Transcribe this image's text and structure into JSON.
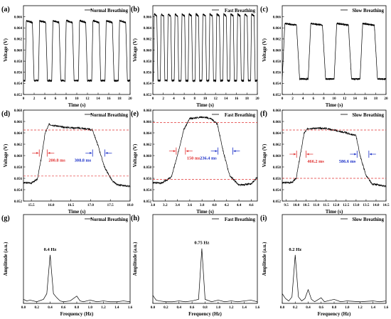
{
  "chart_data": [
    {
      "type": "line",
      "panel_label": "(a)",
      "legend": "Normal Breathing",
      "xlabel": "Time (s)",
      "ylabel": "Voltage (V)",
      "xlim": [
        0,
        20
      ],
      "ylim": [
        0.052,
        0.068
      ],
      "xticks": [
        "0",
        "2",
        "4",
        "6",
        "8",
        "10",
        "12",
        "14",
        "16",
        "18",
        "20"
      ],
      "yticks": [
        "0.052",
        "0.054",
        "0.056",
        "0.058",
        "0.060",
        "0.062",
        "0.064",
        "0.066"
      ],
      "ytick_values": [
        0.052,
        0.054,
        0.056,
        0.058,
        0.06,
        0.062,
        0.064,
        0.066
      ],
      "signal": {
        "period_s": 2.5,
        "low": 0.0545,
        "high": 0.0653,
        "duty_high": 0.55,
        "rise_s": 0.22,
        "fall_s": 0.32,
        "phase_s": 0.3
      }
    },
    {
      "type": "line",
      "panel_label": "(b)",
      "legend": "Fast Breathing",
      "xlabel": "Time (s)",
      "ylabel": "Voltage (V)",
      "xlim": [
        0,
        20
      ],
      "ylim": [
        0.052,
        0.068
      ],
      "xticks": [
        "0",
        "2",
        "4",
        "6",
        "8",
        "10",
        "12",
        "14",
        "16",
        "18",
        "20"
      ],
      "yticks": [
        "0.052",
        "0.054",
        "0.056",
        "0.058",
        "0.060",
        "0.062",
        "0.064",
        "0.066"
      ],
      "ytick_values": [
        0.052,
        0.054,
        0.056,
        0.058,
        0.06,
        0.062,
        0.064,
        0.066
      ],
      "signal": {
        "period_s": 1.33,
        "low": 0.0545,
        "high": 0.0665,
        "duty_high": 0.5,
        "rise_s": 0.16,
        "fall_s": 0.2,
        "phase_s": 0.1
      }
    },
    {
      "type": "line",
      "panel_label": "(c)",
      "legend": "Slow Breathing",
      "xlabel": "Time (s)",
      "ylabel": "Voltage (V)",
      "xlim": [
        0,
        20
      ],
      "ylim": [
        0.052,
        0.068
      ],
      "xticks": [
        "0",
        "2",
        "4",
        "6",
        "8",
        "10",
        "12",
        "14",
        "16",
        "18",
        "20"
      ],
      "yticks": [
        "0.052",
        "0.054",
        "0.056",
        "0.058",
        "0.060",
        "0.062",
        "0.064",
        "0.066"
      ],
      "ytick_values": [
        0.052,
        0.054,
        0.056,
        0.058,
        0.06,
        0.062,
        0.064,
        0.066
      ],
      "signal": {
        "period_s": 5.0,
        "low": 0.0548,
        "high": 0.0648,
        "duty_high": 0.55,
        "rise_s": 0.5,
        "fall_s": 0.6,
        "phase_s": 0.0
      }
    },
    {
      "type": "line",
      "panel_label": "(d)",
      "legend": "Normal Breathing",
      "xlabel": "Time (s)",
      "ylabel": "Voltage (V)",
      "xlim": [
        15.3,
        18.0
      ],
      "ylim": [
        0.052,
        0.068
      ],
      "xticks": [
        "15.5",
        "16.0",
        "16.5",
        "17.0",
        "17.5",
        "18.0"
      ],
      "xtick_values": [
        15.5,
        16.0,
        16.5,
        17.0,
        17.5,
        18.0
      ],
      "yticks": [
        "0.052",
        "0.054",
        "0.056",
        "0.058",
        "0.060",
        "0.062",
        "0.064",
        "0.066",
        "0.068"
      ],
      "ytick_values": [
        0.052,
        0.054,
        0.056,
        0.058,
        0.06,
        0.062,
        0.064,
        0.066,
        0.068
      ],
      "curve": [
        [
          15.3,
          0.0552
        ],
        [
          15.5,
          0.0552
        ],
        [
          15.65,
          0.0558
        ],
        [
          15.75,
          0.0595
        ],
        [
          15.85,
          0.064
        ],
        [
          15.95,
          0.0655
        ],
        [
          16.3,
          0.065
        ],
        [
          16.8,
          0.0648
        ],
        [
          17.05,
          0.0645
        ],
        [
          17.2,
          0.0615
        ],
        [
          17.35,
          0.058
        ],
        [
          17.55,
          0.0555
        ],
        [
          17.7,
          0.0548
        ],
        [
          18.0,
          0.0546
        ]
      ],
      "ref_levels": [
        0.0645,
        0.0564
      ],
      "rise": {
        "label": "200.8 ms",
        "t0": 15.7,
        "t1": 15.9
      },
      "fall": {
        "label": "308.8 ms",
        "t0": 17.05,
        "t1": 17.36
      }
    },
    {
      "type": "line",
      "panel_label": "(e)",
      "legend": "Fast Breathing",
      "xlabel": "Time (s)",
      "ylabel": "Voltage (V)",
      "xlim": [
        3.0,
        4.7
      ],
      "ylim": [
        0.052,
        0.068
      ],
      "xticks": [
        "3.0",
        "3.2",
        "3.4",
        "3.6",
        "3.8",
        "4.0",
        "4.2",
        "4.4",
        "4.6"
      ],
      "xtick_values": [
        3.0,
        3.2,
        3.4,
        3.6,
        3.8,
        4.0,
        4.2,
        4.4,
        4.6
      ],
      "yticks": [
        "0.052",
        "0.054",
        "0.056",
        "0.058",
        "0.060",
        "0.062",
        "0.064",
        "0.066",
        "0.068"
      ],
      "ytick_values": [
        0.052,
        0.054,
        0.056,
        0.058,
        0.06,
        0.062,
        0.064,
        0.066,
        0.068
      ],
      "curve": [
        [
          3.0,
          0.0552
        ],
        [
          3.15,
          0.0552
        ],
        [
          3.3,
          0.0562
        ],
        [
          3.4,
          0.06
        ],
        [
          3.5,
          0.0645
        ],
        [
          3.6,
          0.0665
        ],
        [
          3.8,
          0.0668
        ],
        [
          3.95,
          0.0665
        ],
        [
          4.05,
          0.0655
        ],
        [
          4.15,
          0.0605
        ],
        [
          4.25,
          0.0565
        ],
        [
          4.4,
          0.0548
        ],
        [
          4.6,
          0.055
        ],
        [
          4.7,
          0.0562
        ]
      ],
      "ref_levels": [
        0.0658,
        0.0558
      ],
      "rise": {
        "label": "150 ms",
        "t0": 3.38,
        "t1": 3.53
      },
      "fall": {
        "label": "236.4 ms",
        "t0": 4.06,
        "t1": 4.3
      }
    },
    {
      "type": "line",
      "panel_label": "(f)",
      "legend": "Slow Breathing",
      "xlabel": "Time (s)",
      "ylabel": "Voltage (V)",
      "xlim": [
        9.3,
        14.5
      ],
      "ylim": [
        0.052,
        0.068
      ],
      "xticks": [
        "9.5",
        "10.0",
        "10.5",
        "11.0",
        "11.5",
        "12.0",
        "12.5",
        "13.0",
        "13.5",
        "14.0",
        "14.5"
      ],
      "xtick_values": [
        9.5,
        10.0,
        10.5,
        11.0,
        11.5,
        12.0,
        12.5,
        13.0,
        13.5,
        14.0,
        14.5
      ],
      "yticks": [
        "0.052",
        "0.054",
        "0.056",
        "0.058",
        "0.060",
        "0.062",
        "0.064",
        "0.066",
        "0.068"
      ],
      "ytick_values": [
        0.052,
        0.054,
        0.056,
        0.058,
        0.06,
        0.062,
        0.064,
        0.066,
        0.068
      ],
      "curve": [
        [
          9.3,
          0.0552
        ],
        [
          9.8,
          0.0553
        ],
        [
          10.0,
          0.056
        ],
        [
          10.2,
          0.06
        ],
        [
          10.4,
          0.064
        ],
        [
          10.6,
          0.0648
        ],
        [
          11.5,
          0.0648
        ],
        [
          12.5,
          0.064
        ],
        [
          13.0,
          0.0635
        ],
        [
          13.2,
          0.06
        ],
        [
          13.5,
          0.0565
        ],
        [
          13.8,
          0.055
        ],
        [
          14.5,
          0.0546
        ]
      ],
      "ref_levels": [
        0.0645,
        0.056
      ],
      "rise": {
        "label": "466.2 ms",
        "t0": 10.02,
        "t1": 10.49
      },
      "fall": {
        "label": "586.6 ms",
        "t0": 13.05,
        "t1": 13.64
      }
    },
    {
      "type": "line",
      "panel_label": "(g)",
      "legend": "Normal Breathing",
      "xlabel": "Frequency (Hz)",
      "ylabel": "Amplitude (a.u.)",
      "xlim": [
        0,
        1.6
      ],
      "ylim": [
        0,
        1.1
      ],
      "xticks": [
        "0.0",
        "0.2",
        "0.4",
        "0.6",
        "0.8",
        "1.0",
        "1.2",
        "1.4",
        "1.6"
      ],
      "xtick_values": [
        0.0,
        0.2,
        0.4,
        0.6,
        0.8,
        1.0,
        1.2,
        1.4,
        1.6
      ],
      "peak_label": "0.4 Hz",
      "peak_at": 0.4,
      "spectrum": [
        [
          0,
          0.05
        ],
        [
          0.05,
          0.03
        ],
        [
          0.1,
          0.04
        ],
        [
          0.2,
          0.02
        ],
        [
          0.3,
          0.05
        ],
        [
          0.35,
          0.12
        ],
        [
          0.4,
          0.6
        ],
        [
          0.45,
          0.12
        ],
        [
          0.5,
          0.07
        ],
        [
          0.55,
          0.03
        ],
        [
          0.6,
          0.02
        ],
        [
          0.7,
          0.03
        ],
        [
          0.8,
          0.09
        ],
        [
          0.85,
          0.03
        ],
        [
          0.9,
          0.02
        ],
        [
          1.0,
          0.04
        ],
        [
          1.1,
          0.02
        ],
        [
          1.2,
          0.03
        ],
        [
          1.3,
          0.02
        ],
        [
          1.4,
          0.02
        ],
        [
          1.5,
          0.03
        ],
        [
          1.6,
          0.02
        ]
      ]
    },
    {
      "type": "line",
      "panel_label": "(h)",
      "legend": "Fast Breathing",
      "xlabel": "Frequency (Hz)",
      "ylabel": "Amplitude (a.u.)",
      "xlim": [
        0,
        1.6
      ],
      "ylim": [
        0,
        1.1
      ],
      "xticks": [
        "0.0",
        "0.2",
        "0.4",
        "0.6",
        "0.8",
        "1.0",
        "1.2",
        "1.4",
        "1.6"
      ],
      "xtick_values": [
        0.0,
        0.2,
        0.4,
        0.6,
        0.8,
        1.0,
        1.2,
        1.4,
        1.6
      ],
      "peak_label": "0.75 Hz",
      "peak_at": 0.75,
      "spectrum": [
        [
          0,
          0.1
        ],
        [
          0.05,
          0.04
        ],
        [
          0.1,
          0.03
        ],
        [
          0.2,
          0.02
        ],
        [
          0.3,
          0.02
        ],
        [
          0.4,
          0.03
        ],
        [
          0.5,
          0.02
        ],
        [
          0.6,
          0.03
        ],
        [
          0.7,
          0.05
        ],
        [
          0.75,
          0.68
        ],
        [
          0.8,
          0.05
        ],
        [
          0.9,
          0.02
        ],
        [
          1.0,
          0.04
        ],
        [
          1.1,
          0.02
        ],
        [
          1.2,
          0.03
        ],
        [
          1.3,
          0.02
        ],
        [
          1.4,
          0.03
        ],
        [
          1.5,
          0.04
        ],
        [
          1.6,
          0.02
        ]
      ]
    },
    {
      "type": "line",
      "panel_label": "(i)",
      "legend": "Slow Breathing",
      "xlabel": "Frequency (Hz)",
      "ylabel": "Amplitude (a.u.)",
      "xlim": [
        0,
        1.6
      ],
      "ylim": [
        0,
        1.1
      ],
      "xticks": [
        "0.0",
        "0.2",
        "0.4",
        "0.6",
        "0.8",
        "1.0",
        "1.2",
        "1.4",
        "1.6"
      ],
      "xtick_values": [
        0.0,
        0.2,
        0.4,
        0.6,
        0.8,
        1.0,
        1.2,
        1.4,
        1.6
      ],
      "peak_label": "0.2 Hz",
      "peak_at": 0.2,
      "spectrum": [
        [
          0,
          0.12
        ],
        [
          0.05,
          0.06
        ],
        [
          0.1,
          0.03
        ],
        [
          0.15,
          0.08
        ],
        [
          0.2,
          0.6
        ],
        [
          0.25,
          0.08
        ],
        [
          0.3,
          0.03
        ],
        [
          0.35,
          0.06
        ],
        [
          0.4,
          0.17
        ],
        [
          0.45,
          0.05
        ],
        [
          0.5,
          0.02
        ],
        [
          0.6,
          0.07
        ],
        [
          0.65,
          0.02
        ],
        [
          0.8,
          0.05
        ],
        [
          0.9,
          0.02
        ],
        [
          1.0,
          0.03
        ],
        [
          1.2,
          0.02
        ],
        [
          1.4,
          0.03
        ],
        [
          1.5,
          0.02
        ],
        [
          1.6,
          0.03
        ]
      ]
    }
  ],
  "colors": {
    "trace": "#000000",
    "ref_line": "#e03030",
    "rise": "#e03030",
    "fall": "#1a2fc8"
  }
}
